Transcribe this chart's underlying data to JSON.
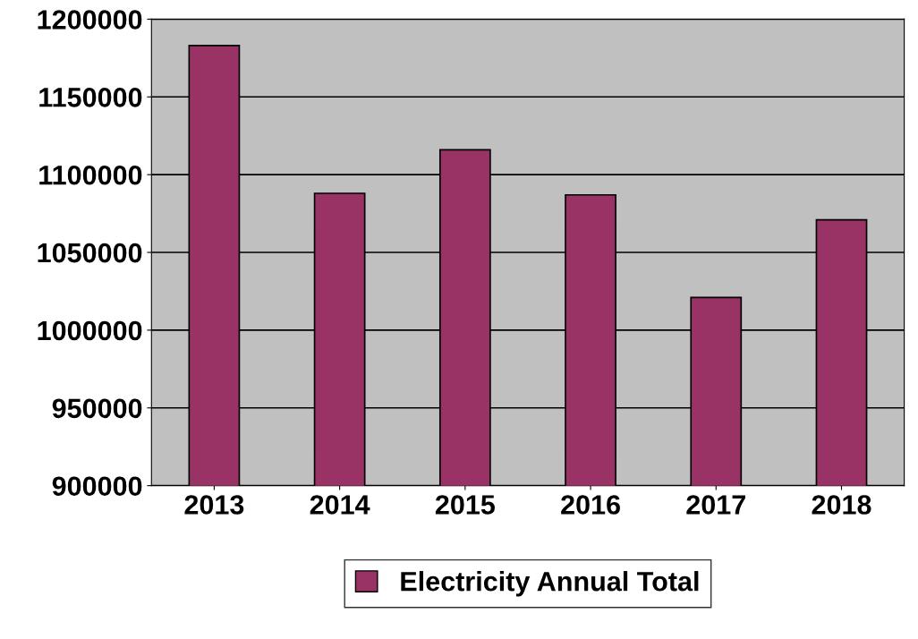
{
  "chart_data": {
    "type": "bar",
    "categories": [
      "2013",
      "2014",
      "2015",
      "2016",
      "2017",
      "2018"
    ],
    "series": [
      {
        "name": "Electricity Annual Total",
        "color": "#993366",
        "values": [
          1183000,
          1088000,
          1116000,
          1087000,
          1021000,
          1071000
        ]
      }
    ],
    "ylim": [
      900000,
      1200000
    ],
    "yticks": [
      900000,
      950000,
      1000000,
      1050000,
      1100000,
      1150000,
      1200000
    ],
    "grid": "y",
    "legend": "bottom"
  }
}
